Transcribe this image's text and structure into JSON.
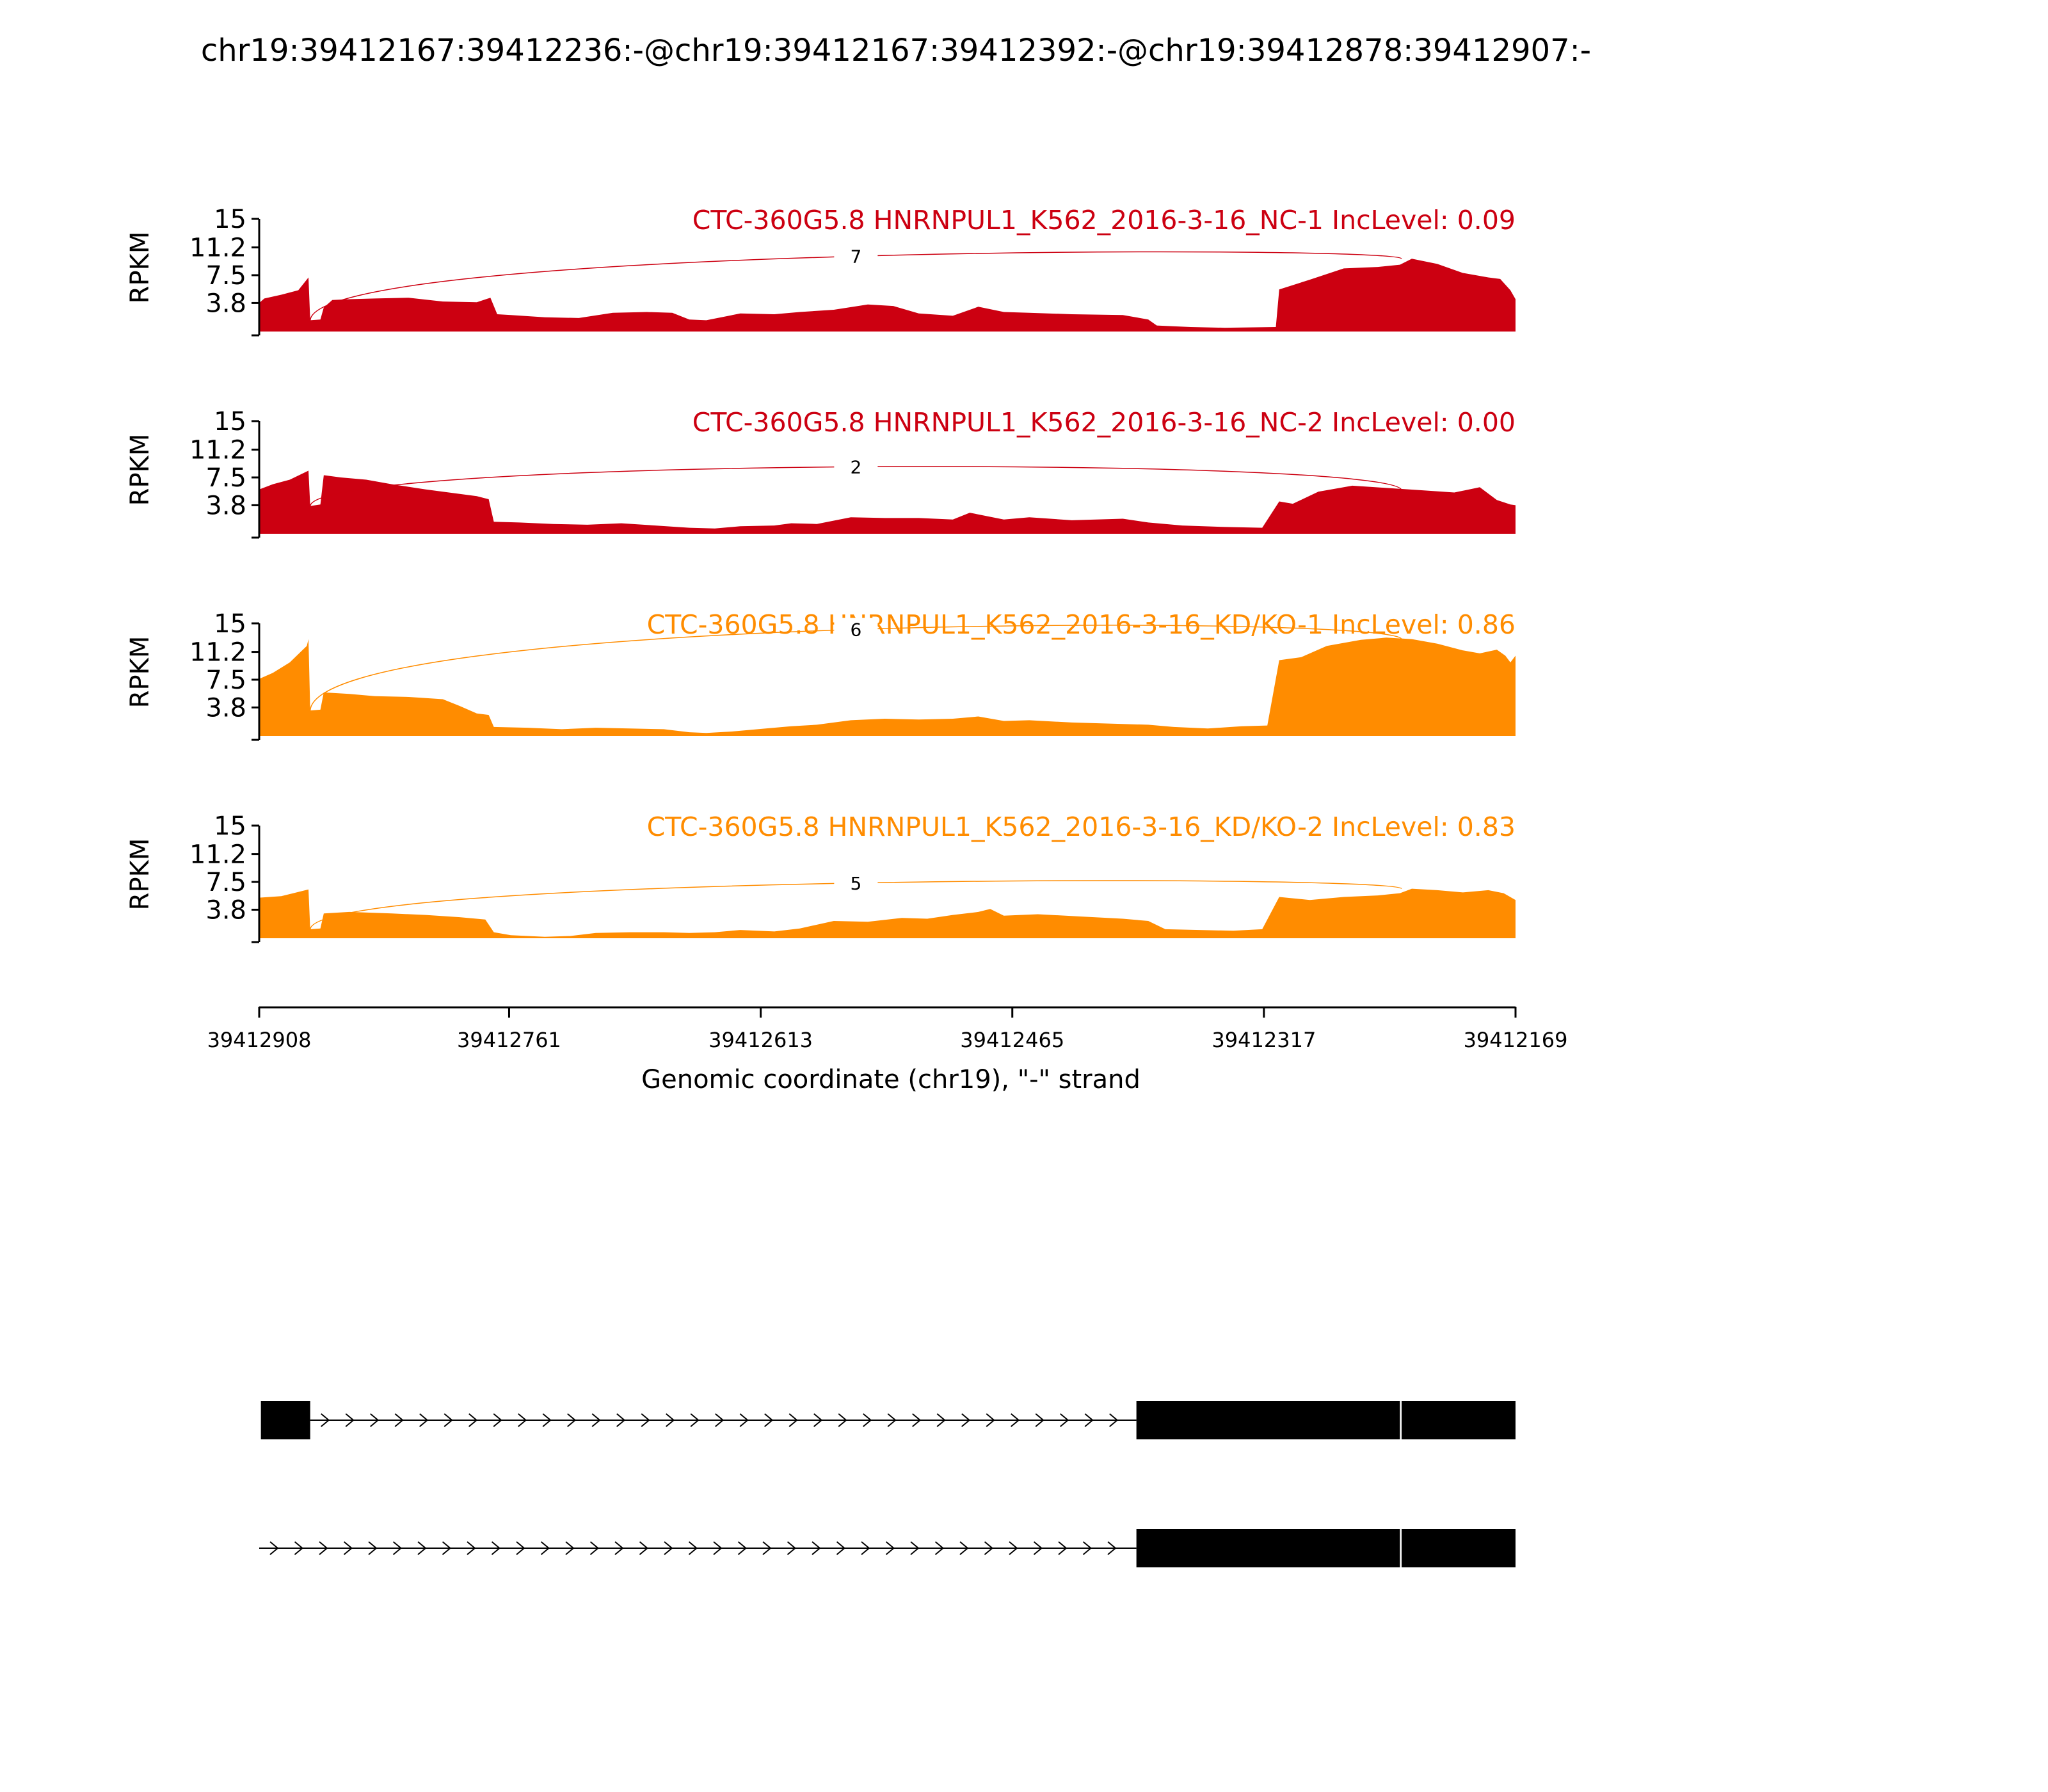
{
  "chart_data": {
    "type": "area",
    "title": "chr19:39412167:39412236:-@chr19:39412167:39412392:-@chr19:39412878:39412907:-",
    "xlabel": "Genomic coordinate (chr19), \"-\" strand",
    "ylabel": "RPKM",
    "xlim": [
      39412908,
      39412169
    ],
    "ylim": [
      0,
      15
    ],
    "yticks": [
      "15",
      "11.2",
      "7.5",
      "3.8"
    ],
    "xticks": [
      39412908,
      39412761,
      39412613,
      39412465,
      39412317,
      39412169
    ],
    "grid": false,
    "tracks": [
      {
        "label": "CTC-360G5.8 HNRNPUL1_K562_2016-3-16_NC-1 IncLevel: 0.09",
        "color": "#cc0011",
        "junction": {
          "start": 39412878,
          "end": 39412236,
          "count": "7",
          "peak": 11.5
        },
        "coverage": [
          [
            39412908,
            3.8
          ],
          [
            39412905,
            4.4
          ],
          [
            39412895,
            4.9
          ],
          [
            39412885,
            5.5
          ],
          [
            39412879,
            7.2
          ],
          [
            39412878,
            1.5
          ],
          [
            39412872,
            1.6
          ],
          [
            39412870,
            3.2
          ],
          [
            39412865,
            4.2
          ],
          [
            39412855,
            4.3
          ],
          [
            39412840,
            4.4
          ],
          [
            39412820,
            4.5
          ],
          [
            39412800,
            4.0
          ],
          [
            39412780,
            3.9
          ],
          [
            39412772,
            4.5
          ],
          [
            39412768,
            2.3
          ],
          [
            39412760,
            2.2
          ],
          [
            39412740,
            1.9
          ],
          [
            39412720,
            1.8
          ],
          [
            39412700,
            2.5
          ],
          [
            39412680,
            2.6
          ],
          [
            39412665,
            2.5
          ],
          [
            39412655,
            1.6
          ],
          [
            39412645,
            1.5
          ],
          [
            39412625,
            2.4
          ],
          [
            39412605,
            2.3
          ],
          [
            39412590,
            2.6
          ],
          [
            39412570,
            2.9
          ],
          [
            39412550,
            3.6
          ],
          [
            39412535,
            3.4
          ],
          [
            39412520,
            2.4
          ],
          [
            39412500,
            2.1
          ],
          [
            39412485,
            3.3
          ],
          [
            39412470,
            2.6
          ],
          [
            39412455,
            2.5
          ],
          [
            39412430,
            2.3
          ],
          [
            39412400,
            2.2
          ],
          [
            39412385,
            1.6
          ],
          [
            39412380,
            0.8
          ],
          [
            39412360,
            0.6
          ],
          [
            39412340,
            0.5
          ],
          [
            39412310,
            0.6
          ],
          [
            39412308,
            5.6
          ],
          [
            39412290,
            6.9
          ],
          [
            39412270,
            8.4
          ],
          [
            39412250,
            8.6
          ],
          [
            39412237,
            8.9
          ],
          [
            39412230,
            9.7
          ],
          [
            39412215,
            9.0
          ],
          [
            39412200,
            7.8
          ],
          [
            39412185,
            7.2
          ],
          [
            39412178,
            7.0
          ],
          [
            39412172,
            5.5
          ],
          [
            39412169,
            4.3
          ]
        ]
      },
      {
        "label": "CTC-360G5.8 HNRNPUL1_K562_2016-3-16_NC-2 IncLevel: 0.00",
        "color": "#cc0011",
        "junction": {
          "start": 39412878,
          "end": 39412236,
          "count": "2",
          "peak": 10.3
        },
        "coverage": [
          [
            39412908,
            5.9
          ],
          [
            39412900,
            6.6
          ],
          [
            39412890,
            7.2
          ],
          [
            39412879,
            8.4
          ],
          [
            39412878,
            3.7
          ],
          [
            39412872,
            3.9
          ],
          [
            39412870,
            7.8
          ],
          [
            39412860,
            7.5
          ],
          [
            39412845,
            7.2
          ],
          [
            39412830,
            6.6
          ],
          [
            39412810,
            5.9
          ],
          [
            39412790,
            5.3
          ],
          [
            39412780,
            5.0
          ],
          [
            39412773,
            4.6
          ],
          [
            39412770,
            1.6
          ],
          [
            39412755,
            1.5
          ],
          [
            39412735,
            1.3
          ],
          [
            39412715,
            1.2
          ],
          [
            39412695,
            1.4
          ],
          [
            39412675,
            1.1
          ],
          [
            39412655,
            0.8
          ],
          [
            39412640,
            0.7
          ],
          [
            39412625,
            1.0
          ],
          [
            39412605,
            1.1
          ],
          [
            39412595,
            1.4
          ],
          [
            39412580,
            1.3
          ],
          [
            39412560,
            2.2
          ],
          [
            39412540,
            2.1
          ],
          [
            39412520,
            2.1
          ],
          [
            39412500,
            1.9
          ],
          [
            39412490,
            2.8
          ],
          [
            39412470,
            1.9
          ],
          [
            39412455,
            2.2
          ],
          [
            39412430,
            1.8
          ],
          [
            39412400,
            2.0
          ],
          [
            39412385,
            1.5
          ],
          [
            39412365,
            1.1
          ],
          [
            39412340,
            0.9
          ],
          [
            39412318,
            0.8
          ],
          [
            39412308,
            4.3
          ],
          [
            39412300,
            4.0
          ],
          [
            39412285,
            5.6
          ],
          [
            39412265,
            6.4
          ],
          [
            39412245,
            6.1
          ],
          [
            39412225,
            5.8
          ],
          [
            39412205,
            5.5
          ],
          [
            39412190,
            6.2
          ],
          [
            39412180,
            4.5
          ],
          [
            39412172,
            3.9
          ],
          [
            39412169,
            3.8
          ]
        ]
      },
      {
        "label": "CTC-360G5.8 HNRNPUL1_K562_2016-3-16_KD/KO-1 IncLevel: 0.86",
        "color": "#ff8c00",
        "junction": {
          "start": 39412878,
          "end": 39412236,
          "count": "6",
          "peak": 16.2
        },
        "coverage": [
          [
            39412908,
            7.6
          ],
          [
            39412900,
            8.4
          ],
          [
            39412890,
            9.8
          ],
          [
            39412880,
            12.0
          ],
          [
            39412879,
            12.9
          ],
          [
            39412878,
            3.4
          ],
          [
            39412872,
            3.5
          ],
          [
            39412870,
            5.8
          ],
          [
            39412855,
            5.6
          ],
          [
            39412840,
            5.3
          ],
          [
            39412820,
            5.2
          ],
          [
            39412800,
            4.9
          ],
          [
            39412790,
            4.0
          ],
          [
            39412780,
            3.0
          ],
          [
            39412773,
            2.8
          ],
          [
            39412770,
            1.2
          ],
          [
            39412750,
            1.1
          ],
          [
            39412730,
            0.9
          ],
          [
            39412710,
            1.1
          ],
          [
            39412690,
            1.0
          ],
          [
            39412670,
            0.9
          ],
          [
            39412655,
            0.5
          ],
          [
            39412645,
            0.4
          ],
          [
            39412630,
            0.6
          ],
          [
            39412610,
            1.0
          ],
          [
            39412595,
            1.3
          ],
          [
            39412580,
            1.5
          ],
          [
            39412560,
            2.1
          ],
          [
            39412540,
            2.3
          ],
          [
            39412520,
            2.2
          ],
          [
            39412500,
            2.3
          ],
          [
            39412485,
            2.6
          ],
          [
            39412470,
            2.0
          ],
          [
            39412455,
            2.1
          ],
          [
            39412430,
            1.8
          ],
          [
            39412400,
            1.6
          ],
          [
            39412385,
            1.5
          ],
          [
            39412370,
            1.2
          ],
          [
            39412350,
            1.0
          ],
          [
            39412330,
            1.3
          ],
          [
            39412315,
            1.4
          ],
          [
            39412308,
            10.1
          ],
          [
            39412295,
            10.5
          ],
          [
            39412280,
            12.0
          ],
          [
            39412260,
            12.8
          ],
          [
            39412245,
            13.1
          ],
          [
            39412230,
            12.9
          ],
          [
            39412215,
            12.3
          ],
          [
            39412200,
            11.4
          ],
          [
            39412190,
            11.0
          ],
          [
            39412180,
            11.5
          ],
          [
            39412175,
            10.7
          ],
          [
            39412172,
            9.8
          ],
          [
            39412169,
            10.7
          ]
        ]
      },
      {
        "label": "CTC-360G5.8 HNRNPUL1_K562_2016-3-16_KD/KO-2 IncLevel: 0.83",
        "color": "#ff8c00",
        "junction": {
          "start": 39412878,
          "end": 39412236,
          "count": "5",
          "peak": 8.5
        },
        "coverage": [
          [
            39412908,
            5.4
          ],
          [
            39412895,
            5.6
          ],
          [
            39412879,
            6.5
          ],
          [
            39412878,
            1.2
          ],
          [
            39412872,
            1.3
          ],
          [
            39412870,
            3.3
          ],
          [
            39412855,
            3.5
          ],
          [
            39412830,
            3.3
          ],
          [
            39412810,
            3.1
          ],
          [
            39412790,
            2.8
          ],
          [
            39412775,
            2.5
          ],
          [
            39412770,
            0.8
          ],
          [
            39412760,
            0.4
          ],
          [
            39412740,
            0.2
          ],
          [
            39412725,
            0.3
          ],
          [
            39412710,
            0.7
          ],
          [
            39412690,
            0.8
          ],
          [
            39412670,
            0.8
          ],
          [
            39412655,
            0.7
          ],
          [
            39412640,
            0.8
          ],
          [
            39412625,
            1.1
          ],
          [
            39412605,
            0.9
          ],
          [
            39412590,
            1.3
          ],
          [
            39412570,
            2.3
          ],
          [
            39412550,
            2.2
          ],
          [
            39412530,
            2.7
          ],
          [
            39412515,
            2.6
          ],
          [
            39412500,
            3.1
          ],
          [
            39412485,
            3.5
          ],
          [
            39412478,
            3.9
          ],
          [
            39412470,
            3.0
          ],
          [
            39412450,
            3.2
          ],
          [
            39412425,
            2.9
          ],
          [
            39412400,
            2.6
          ],
          [
            39412385,
            2.3
          ],
          [
            39412375,
            1.2
          ],
          [
            39412355,
            1.1
          ],
          [
            39412335,
            1.0
          ],
          [
            39412318,
            1.2
          ],
          [
            39412308,
            5.5
          ],
          [
            39412290,
            5.1
          ],
          [
            39412270,
            5.5
          ],
          [
            39412250,
            5.7
          ],
          [
            39412237,
            6.0
          ],
          [
            39412230,
            6.6
          ],
          [
            39412215,
            6.4
          ],
          [
            39412200,
            6.1
          ],
          [
            39412185,
            6.4
          ],
          [
            39412176,
            6.0
          ],
          [
            39412169,
            5.1
          ]
        ]
      }
    ],
    "gene_models": [
      {
        "exons": [
          [
            39412907,
            39412878
          ],
          [
            39412392,
            39412237
          ],
          [
            39412236,
            39412169
          ]
        ],
        "intron": [
          39412878,
          39412392
        ]
      },
      {
        "exons": [
          [
            39412392,
            39412237
          ],
          [
            39412236,
            39412169
          ]
        ],
        "intron": [
          39412908,
          39412392
        ]
      }
    ]
  }
}
